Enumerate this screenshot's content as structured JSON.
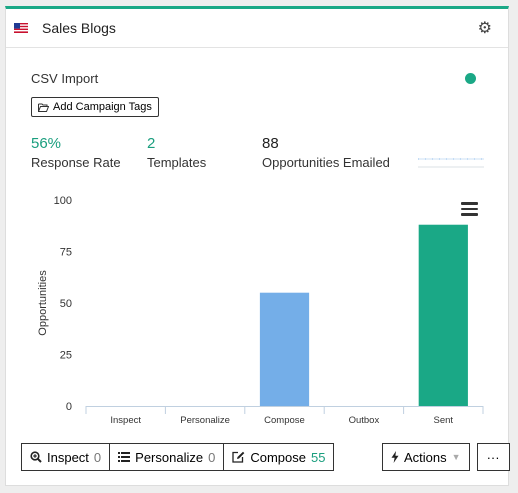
{
  "header": {
    "title": "Sales Blogs",
    "flag_icon": "us-flag-icon",
    "settings_icon": "gear-icon"
  },
  "campaign": {
    "source": "CSV Import",
    "status_color": "#1aa886",
    "add_tags_label": "Add Campaign Tags"
  },
  "stats": [
    {
      "value": "56%",
      "label": "Response Rate",
      "color": "#1a9e7e"
    },
    {
      "value": "2",
      "label": "Templates",
      "color": "#1a9e7e"
    },
    {
      "value": "88",
      "label": "Opportunities Emailed",
      "color": "#222222"
    }
  ],
  "chart_data": {
    "type": "bar",
    "categories": [
      "Inspect",
      "Personalize",
      "Compose",
      "Outbox",
      "Sent"
    ],
    "values": [
      0,
      0,
      55,
      0,
      88
    ],
    "colors": [
      "#74aee8",
      "#74aee8",
      "#74aee8",
      "#74aee8",
      "#1aa886"
    ],
    "ylabel": "Opportunities",
    "ylim": [
      0,
      100
    ],
    "yticks": [
      0,
      25,
      50,
      75,
      100
    ],
    "grid": false
  },
  "toolbar": {
    "inspect": {
      "label": "Inspect",
      "count": "0"
    },
    "personalize": {
      "label": "Personalize",
      "count": "0"
    },
    "compose": {
      "label": "Compose",
      "count": "55"
    },
    "actions": {
      "label": "Actions"
    },
    "more": {
      "label": "···"
    }
  }
}
